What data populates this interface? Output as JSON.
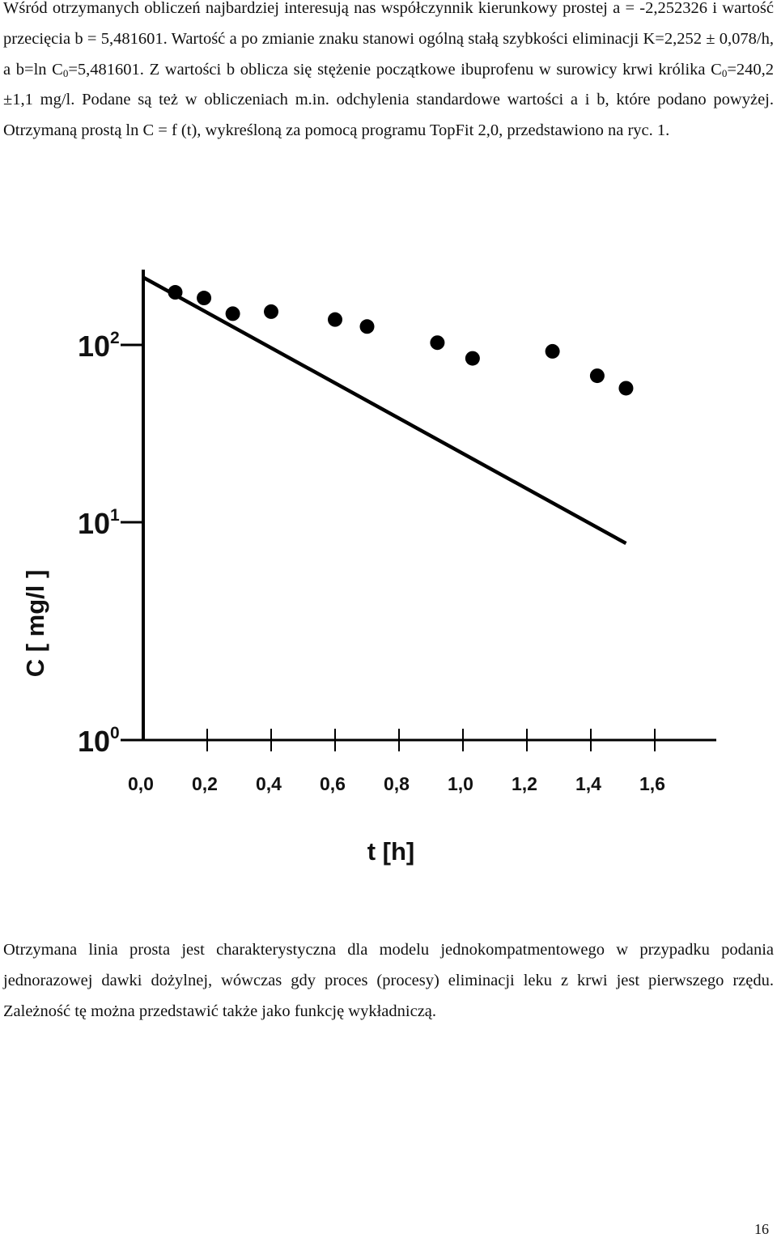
{
  "paragraph1": {
    "s1": "Wśród otrzymanych obliczeń najbardziej interesują nas współczynnik kierunkowy prostej a = -2,252326 i wartość przecięcia b = 5,481601. Wartość a po zmianie znaku stanowi ogólną stałą szybkości eliminacji K=2,252 ± 0,078/h, a b=ln C",
    "sub1": "0",
    "s2": "=5,481601. Z wartości b oblicza się stężenie początkowe ibuprofenu w surowicy krwi królika C",
    "sub2": "0",
    "s3": "=240,2 ±1,1 mg/l. Podane są też w obliczeniach m.in. odchylenia standardowe wartości a i b, które podano powyżej. Otrzymaną prostą ln C = f (t), wykreśloną za pomocą programu TopFit 2,0, przedstawiono na ryc. 1."
  },
  "paragraph2": "Otrzymana linia prosta jest charakterystyczna dla modelu jednokompatmentowego w przypadku podania jednorazowej dawki dożylnej, wówczas gdy proces (procesy) eliminacji leku z krwi jest pierwszego rzędu. Zależność tę można przedstawić także jako funkcję wykładniczą.",
  "page_number": "16",
  "chart_data": {
    "type": "scatter",
    "title": "",
    "xlabel": "t [h]",
    "ylabel": "C [ mg/l ]",
    "xlim": [
      0,
      1.7
    ],
    "ylim": [
      1,
      400
    ],
    "y_scale": "log",
    "grid": false,
    "x_ticks": [
      "0,0",
      "0,2",
      "0,4",
      "0,6",
      "0,8",
      "1,0",
      "1,2",
      "1,4",
      "1,6"
    ],
    "y_ticks": [
      {
        "value": 1,
        "base": "10",
        "exp": "0"
      },
      {
        "value": 10,
        "base": "10",
        "exp": "1"
      },
      {
        "value": 100,
        "base": "10",
        "exp": "2"
      }
    ],
    "points": [
      {
        "x": 0.1,
        "y": 198
      },
      {
        "x": 0.19,
        "y": 184
      },
      {
        "x": 0.28,
        "y": 150
      },
      {
        "x": 0.4,
        "y": 154
      },
      {
        "x": 0.6,
        "y": 139
      },
      {
        "x": 0.7,
        "y": 127
      },
      {
        "x": 0.92,
        "y": 103
      },
      {
        "x": 1.03,
        "y": 84
      },
      {
        "x": 1.28,
        "y": 92
      },
      {
        "x": 1.42,
        "y": 67
      },
      {
        "x": 1.51,
        "y": 57
      }
    ],
    "fit_line": {
      "x": [
        0.0,
        1.51
      ],
      "y": [
        240.2,
        8.0
      ]
    }
  }
}
